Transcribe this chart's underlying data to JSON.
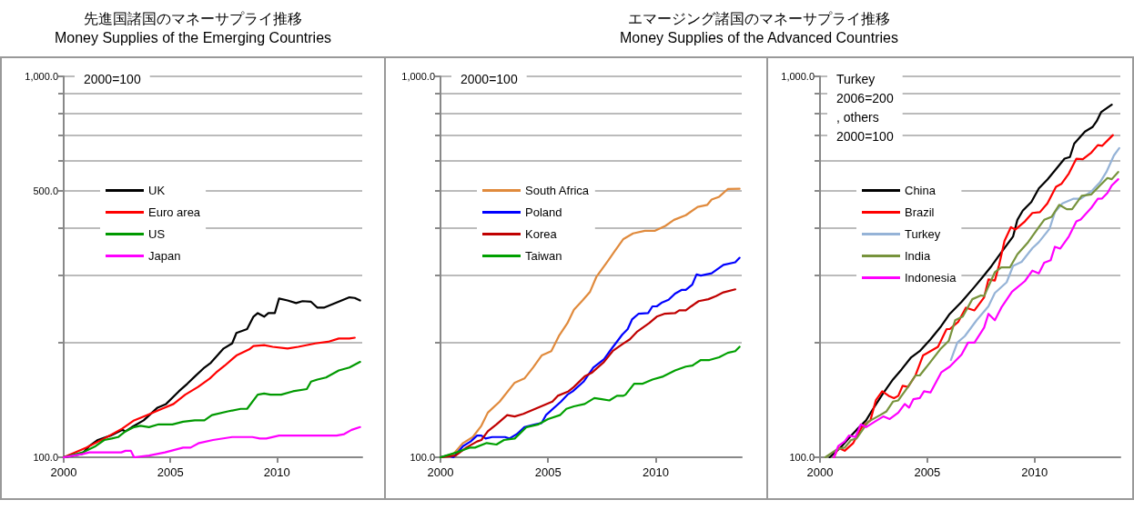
{
  "chart_data": [
    {
      "type": "line",
      "title": "先進国諸国のマネーサプライ推移",
      "subtitle": "Money Supplies of the Emerging Countries",
      "annotations": [
        "2000=100"
      ],
      "log": true,
      "grid": "y",
      "legend": "left",
      "marker": "none",
      "line_style": "solid",
      "xlim": [
        2000,
        2014
      ],
      "xticks": [
        2000,
        2005,
        2010
      ],
      "ylim": [
        100,
        1000
      ],
      "yticks": [
        {
          "value": 100,
          "label": "100.0"
        },
        {
          "value": 200,
          "label": null
        },
        {
          "value": 300,
          "label": null
        },
        {
          "value": 400,
          "label": null
        },
        {
          "value": 500,
          "label": "500.0"
        },
        {
          "value": 600,
          "label": null
        },
        {
          "value": 700,
          "label": null
        },
        {
          "value": 800,
          "label": null
        },
        {
          "value": 900,
          "label": null
        },
        {
          "value": 1000,
          "label": "1,000.0"
        }
      ],
      "series": [
        {
          "name": "UK",
          "color": "#000000",
          "x": [
            2000,
            2000.85,
            2001.2,
            2001.6,
            2002.2,
            2002.75,
            2002.9,
            2003.2,
            2003.75,
            2004.4,
            2004.8,
            2005.4,
            2005.8,
            2006.15,
            2006.6,
            2006.9,
            2007.5,
            2007.9,
            2008.1,
            2008.6,
            2008.9,
            2009.1,
            2009.4,
            2009.6,
            2009.9,
            2010.1,
            2010.5,
            2010.9,
            2011.2,
            2011.6,
            2011.9,
            2012.2,
            2012.8,
            2013.4,
            2013.65,
            2013.9
          ],
          "values": [
            100,
            102,
            107,
            111,
            114,
            118,
            117,
            120,
            125,
            135,
            138,
            149,
            156,
            163,
            172,
            177,
            193,
            199,
            212,
            217,
            234,
            239,
            234,
            239,
            239,
            261,
            258,
            254,
            257,
            256,
            247,
            247,
            255,
            263,
            262,
            258
          ]
        },
        {
          "name": "Euro area",
          "color": "#ff0000",
          "x": [
            2000,
            2001.05,
            2001.9,
            2002.75,
            2003.3,
            2003.9,
            2004.6,
            2005.15,
            2005.7,
            2006.3,
            2006.85,
            2007.15,
            2007.55,
            2008.1,
            2008.7,
            2008.9,
            2009.4,
            2009.8,
            2010.5,
            2011,
            2011.8,
            2012.4,
            2012.9,
            2013.4,
            2013.65
          ],
          "values": [
            100,
            106,
            112,
            119,
            125,
            129,
            134,
            138,
            146,
            153,
            161,
            167,
            174,
            185,
            192,
            196,
            197,
            195,
            193,
            195,
            199,
            201,
            205,
            205,
            206
          ]
        },
        {
          "name": "US",
          "color": "#009900",
          "x": [
            2000,
            2000.9,
            2001.5,
            2001.9,
            2002.25,
            2002.55,
            2002.9,
            2003.3,
            2003.6,
            2004,
            2004.45,
            2005.1,
            2005.6,
            2006.15,
            2006.6,
            2006.95,
            2007.7,
            2008.3,
            2008.6,
            2009.1,
            2009.4,
            2009.7,
            2010.2,
            2010.75,
            2011.4,
            2011.6,
            2011.9,
            2012.3,
            2012.9,
            2013.4,
            2013.9
          ],
          "values": [
            100,
            103,
            107,
            111,
            112,
            113,
            117,
            120,
            121,
            120,
            122,
            122,
            124,
            125,
            125,
            129,
            132,
            134,
            134,
            146,
            147,
            146,
            146,
            149,
            151,
            158,
            160,
            162,
            169,
            172,
            178
          ]
        },
        {
          "name": "Japan",
          "color": "#ff00ff",
          "x": [
            2000,
            2000.9,
            2001.2,
            2001.6,
            2001.9,
            2002.7,
            2002.9,
            2003.15,
            2003.3,
            2004,
            2004.75,
            2005.6,
            2005.95,
            2006.35,
            2007,
            2007.9,
            2008.85,
            2009.2,
            2009.5,
            2010.1,
            2010.4,
            2010.7,
            2010.9,
            2011.1,
            2011.45,
            2012.8,
            2013.15,
            2013.5,
            2013.9
          ],
          "values": [
            100,
            102,
            103,
            103,
            103,
            103,
            104,
            104,
            100,
            101,
            103,
            106,
            106,
            109,
            111,
            113,
            113,
            112,
            112,
            114,
            114,
            114,
            114,
            114,
            114,
            114,
            115,
            118,
            120
          ]
        }
      ]
    },
    {
      "type": "line",
      "title": "エマージング諸国のマネーサプライ推移",
      "subtitle": "Money Supplies of the Advanced Countries",
      "annotations": [
        "2000=100"
      ],
      "log": true,
      "grid": "y",
      "legend": "left",
      "marker": "none",
      "line_style": "solid",
      "xlim": [
        2000,
        2014
      ],
      "xticks": [
        2000,
        2005,
        2010
      ],
      "ylim": [
        100,
        1000
      ],
      "yticks": [
        {
          "value": 100,
          "label": "100.0"
        },
        {
          "value": 200,
          "label": null
        },
        {
          "value": 300,
          "label": null
        },
        {
          "value": 400,
          "label": null
        },
        {
          "value": 500,
          "label": null
        },
        {
          "value": 600,
          "label": null
        },
        {
          "value": 700,
          "label": null
        },
        {
          "value": 800,
          "label": null
        },
        {
          "value": 900,
          "label": null
        },
        {
          "value": 1000,
          "label": "1,000.0"
        }
      ],
      "series": [
        {
          "name": "South Africa",
          "color": "#e08a3c",
          "x": [
            2000,
            2000.6,
            2001.05,
            2001.5,
            2001.9,
            2002.2,
            2002.75,
            2003.45,
            2003.9,
            2004.3,
            2004.7,
            2005.15,
            2005.5,
            2005.9,
            2006.2,
            2006.6,
            2006.95,
            2007.25,
            2007.8,
            2008.1,
            2008.5,
            2008.95,
            2009.5,
            2009.95,
            2010.45,
            2010.85,
            2011.4,
            2011.95,
            2012.4,
            2012.6,
            2012.95,
            2013.35,
            2013.9
          ],
          "values": [
            100,
            102,
            109,
            113,
            121,
            131,
            140,
            157,
            161,
            172,
            185,
            190,
            208,
            225,
            244,
            258,
            272,
            298,
            329,
            348,
            374,
            387,
            393,
            393,
            405,
            420,
            432,
            454,
            460,
            475,
            483,
            506,
            507
          ]
        },
        {
          "name": "Poland",
          "color": "#0000ff",
          "x": [
            2000,
            2000.35,
            2000.6,
            2001.05,
            2001.4,
            2001.7,
            2001.9,
            2002.1,
            2002.4,
            2003,
            2003.2,
            2003.55,
            2003.9,
            2004.4,
            2004.7,
            2004.9,
            2005.6,
            2005.9,
            2006.15,
            2006.65,
            2007.1,
            2007.6,
            2007.9,
            2008.45,
            2008.7,
            2008.9,
            2009.2,
            2009.65,
            2009.85,
            2010.05,
            2010.3,
            2010.6,
            2010.9,
            2011.2,
            2011.4,
            2011.7,
            2011.9,
            2012.1,
            2012.6,
            2013.15,
            2013.7,
            2013.9
          ],
          "values": [
            100,
            101,
            100,
            107,
            110,
            114,
            114,
            112,
            113,
            113,
            112,
            115,
            120,
            122,
            123,
            129,
            140,
            146,
            149,
            158,
            172,
            181,
            191,
            210,
            217,
            230,
            238,
            239,
            249,
            249,
            255,
            259,
            269,
            275,
            275,
            284,
            302,
            300,
            304,
            320,
            325,
            334
          ]
        },
        {
          "name": "Korea",
          "color": "#c00000",
          "x": [
            2000,
            2000.7,
            2001.2,
            2001.7,
            2001.9,
            2002.2,
            2002.6,
            2003.1,
            2003.45,
            2003.85,
            2004.4,
            2004.8,
            2005.2,
            2005.45,
            2005.95,
            2006.2,
            2006.7,
            2007.05,
            2007.6,
            2008,
            2008.45,
            2008.8,
            2009.15,
            2009.7,
            2010.05,
            2010.4,
            2010.9,
            2011.1,
            2011.4,
            2011.65,
            2012,
            2012.45,
            2012.8,
            2013.15,
            2013.7
          ],
          "values": [
            100,
            101,
            106,
            110,
            111,
            117,
            122,
            129,
            128,
            130,
            134,
            137,
            140,
            145,
            149,
            153,
            163,
            167,
            178,
            190,
            198,
            204,
            214,
            225,
            234,
            238,
            239,
            243,
            243,
            249,
            257,
            260,
            265,
            271,
            276
          ]
        },
        {
          "name": "Taiwan",
          "color": "#00a000",
          "x": [
            2000,
            2000.75,
            2001.35,
            2001.6,
            2002.15,
            2002.6,
            2002.95,
            2003.45,
            2004,
            2004.55,
            2005,
            2005.55,
            2005.85,
            2006.2,
            2006.7,
            2007.15,
            2007.5,
            2007.85,
            2008.2,
            2008.5,
            2008.6,
            2009,
            2009.4,
            2009.85,
            2010.35,
            2010.9,
            2011.4,
            2011.7,
            2012.1,
            2012.5,
            2012.95,
            2013.35,
            2013.7,
            2013.9
          ],
          "values": [
            100,
            103,
            106,
            106,
            109,
            108,
            111,
            112,
            120,
            122,
            126,
            129,
            134,
            136,
            138,
            143,
            142,
            141,
            145,
            145,
            146,
            156,
            156,
            160,
            163,
            169,
            173,
            174,
            180,
            180,
            183,
            188,
            190,
            195
          ]
        }
      ]
    },
    {
      "type": "line",
      "annotations": [
        "Turkey\n2006=200\n, others\n2000=100"
      ],
      "log": true,
      "grid": "y",
      "legend": "left",
      "marker": "none",
      "line_style": "solid",
      "xlim": [
        2000,
        2014
      ],
      "xticks": [
        2000,
        2005,
        2010
      ],
      "ylim": [
        100,
        1000
      ],
      "yticks": [
        {
          "value": 100,
          "label": "100.0"
        },
        {
          "value": 200,
          "label": null
        },
        {
          "value": 300,
          "label": null
        },
        {
          "value": 400,
          "label": null
        },
        {
          "value": 500,
          "label": null
        },
        {
          "value": 600,
          "label": null
        },
        {
          "value": 700,
          "label": null
        },
        {
          "value": 800,
          "label": null
        },
        {
          "value": 900,
          "label": null
        },
        {
          "value": 1000,
          "label": "1,000.0"
        }
      ],
      "series": [
        {
          "name": "China",
          "color": "#000000",
          "x": [
            2000.45,
            2000.95,
            2001.45,
            2001.7,
            2002.15,
            2002.4,
            2002.9,
            2003.4,
            2003.8,
            2004.25,
            2004.65,
            2005.15,
            2005.65,
            2006.05,
            2006.6,
            2007.2,
            2007.6,
            2008,
            2008.45,
            2008.85,
            2009,
            2009.2,
            2009.45,
            2009.85,
            2010.2,
            2010.6,
            2010.95,
            2011.4,
            2011.65,
            2011.85,
            2012.35,
            2012.7,
            2012.9,
            2013.1,
            2013.6
          ],
          "values": [
            100,
            106,
            114,
            118,
            125,
            132,
            146,
            160,
            170,
            183,
            190,
            204,
            221,
            238,
            256,
            280,
            298,
            318,
            345,
            370,
            380,
            420,
            444,
            468,
            508,
            536,
            566,
            608,
            614,
            666,
            716,
            736,
            763,
            805,
            843
          ]
        },
        {
          "name": "Brazil",
          "color": "#ff0000",
          "x": [
            2000.65,
            2000.85,
            2001.15,
            2001.55,
            2001.95,
            2002.35,
            2002.6,
            2002.9,
            2003.2,
            2003.45,
            2003.65,
            2003.85,
            2004.1,
            2004.45,
            2004.8,
            2005.15,
            2005.5,
            2005.9,
            2006.05,
            2006.45,
            2006.8,
            2007.2,
            2007.65,
            2007.85,
            2008.15,
            2008.35,
            2008.6,
            2008.9,
            2009.1,
            2009.55,
            2009.9,
            2010.25,
            2010.6,
            2011,
            2011.25,
            2011.6,
            2011.95,
            2012.25,
            2012.65,
            2012.95,
            2013.15,
            2013.65
          ],
          "values": [
            100,
            106,
            104,
            109,
            120,
            125,
            141,
            149,
            145,
            143,
            145,
            154,
            153,
            164,
            185,
            190,
            195,
            217,
            217,
            227,
            247,
            243,
            263,
            293,
            291,
            320,
            370,
            402,
            396,
            416,
            438,
            440,
            464,
            513,
            522,
            556,
            608,
            606,
            631,
            660,
            657,
            701
          ]
        },
        {
          "name": "Turkey",
          "color": "#95b3d7",
          "x": [
            2006.1,
            2006.4,
            2006.75,
            2007.3,
            2007.85,
            2008.15,
            2008.7,
            2009,
            2009.4,
            2009.9,
            2010.2,
            2010.7,
            2010.95,
            2011.3,
            2011.8,
            2012.15,
            2012.65,
            2013.05,
            2013.35,
            2013.7,
            2013.95
          ],
          "values": [
            180,
            200,
            208,
            229,
            249,
            270,
            288,
            318,
            326,
            354,
            367,
            398,
            440,
            464,
            477,
            477,
            499,
            527,
            561,
            620,
            648
          ]
        },
        {
          "name": "India",
          "color": "#77933c",
          "x": [
            2000.25,
            2000.8,
            2001.15,
            2001.45,
            2001.7,
            2002.25,
            2002.8,
            2003.1,
            2003.4,
            2003.65,
            2004.1,
            2004.45,
            2004.65,
            2005.15,
            2005.6,
            2006,
            2006.3,
            2006.65,
            2007.1,
            2007.5,
            2007.65,
            2008.15,
            2008.45,
            2008.85,
            2009.2,
            2009.7,
            2010.2,
            2010.45,
            2010.8,
            2011.15,
            2011.5,
            2011.75,
            2012.2,
            2012.65,
            2013.05,
            2013.4,
            2013.6,
            2013.9
          ],
          "values": [
            100,
            105,
            106,
            111,
            112,
            124,
            129,
            132,
            140,
            141,
            153,
            164,
            164,
            178,
            192,
            202,
            229,
            234,
            260,
            266,
            265,
            306,
            315,
            315,
            341,
            367,
            402,
            420,
            428,
            460,
            448,
            448,
            486,
            490,
            517,
            541,
            537,
            561
          ]
        },
        {
          "name": "Indonesia",
          "color": "#ff00ff",
          "x": [
            2000.65,
            2000.85,
            2001.15,
            2001.35,
            2001.65,
            2001.9,
            2002.15,
            2002.55,
            2002.95,
            2003.25,
            2003.65,
            2003.95,
            2004.15,
            2004.35,
            2004.65,
            2004.85,
            2005.15,
            2005.65,
            2006.05,
            2006.6,
            2006.9,
            2007.2,
            2007.65,
            2007.85,
            2008.15,
            2008.45,
            2008.95,
            2009.55,
            2009.9,
            2010.2,
            2010.45,
            2010.75,
            2010.95,
            2011.2,
            2011.6,
            2011.95,
            2012.15,
            2012.65,
            2012.95,
            2013.15,
            2013.4,
            2013.6,
            2013.9
          ],
          "values": [
            100,
            107,
            110,
            114,
            113,
            122,
            120,
            124,
            128,
            126,
            131,
            138,
            135,
            142,
            143,
            149,
            148,
            167,
            173,
            186,
            200,
            200,
            219,
            238,
            229,
            247,
            272,
            290,
            309,
            304,
            324,
            329,
            357,
            353,
            380,
            416,
            421,
            452,
            477,
            478,
            494,
            517,
            537
          ]
        }
      ]
    }
  ]
}
